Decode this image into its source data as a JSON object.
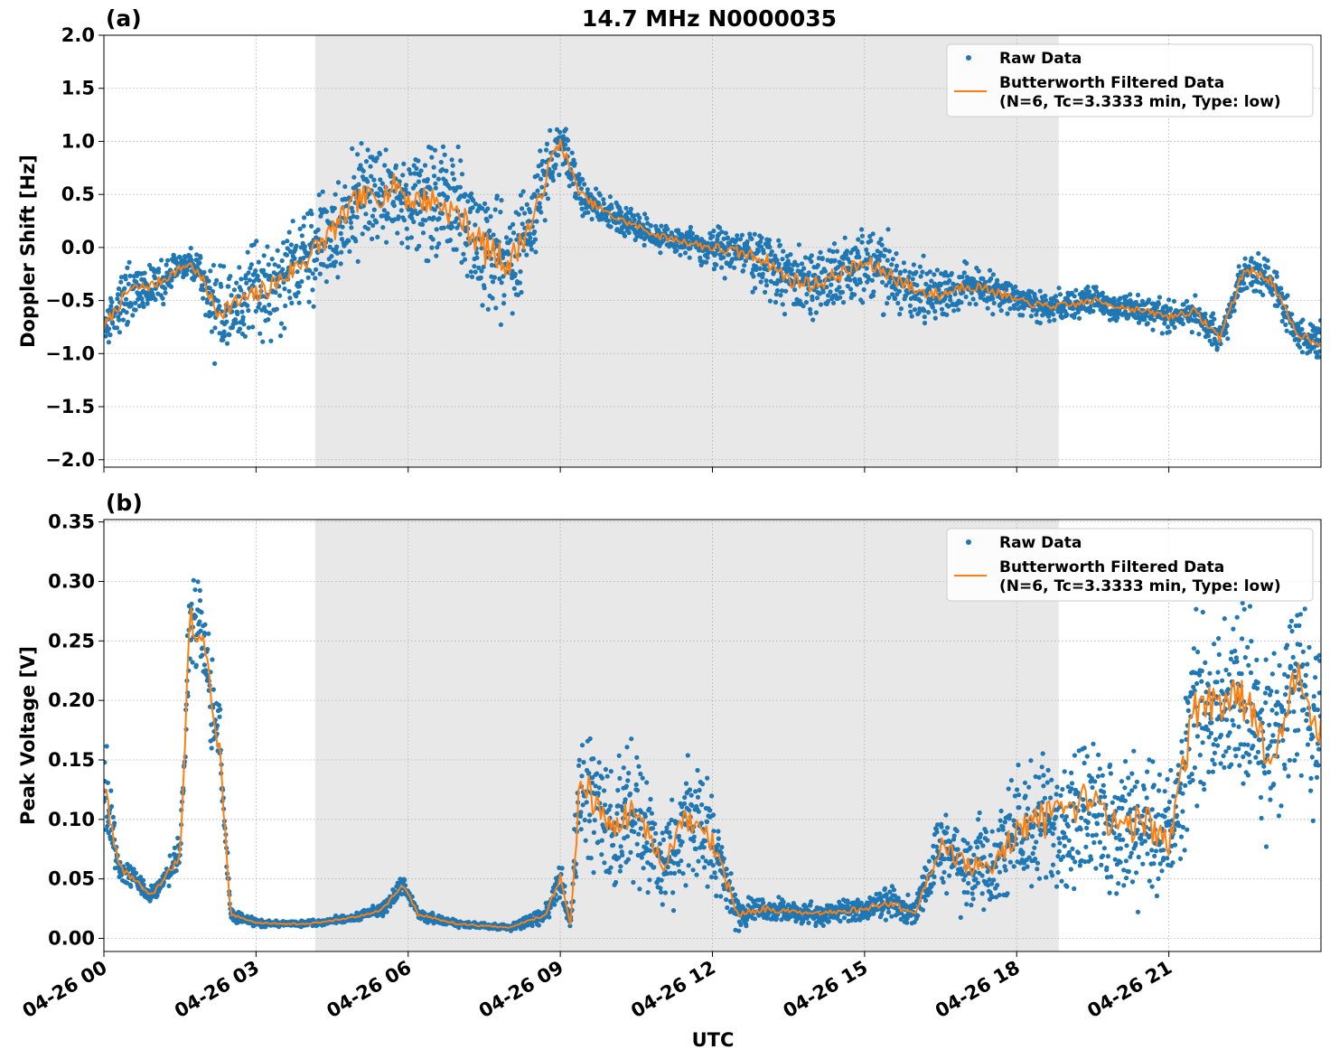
{
  "figure": {
    "title": "14.7 MHz N0000035",
    "x_axis_label": "UTC",
    "x_tick_labels": [
      "04-26 00",
      "04-26 03",
      "04-26 06",
      "04-26 09",
      "04-26 12",
      "04-26 15",
      "04-26 18",
      "04-26 21"
    ]
  },
  "colors": {
    "raw": "#1f77b4",
    "filtered": "#ff7f0e",
    "shade": "#e8e8e8",
    "grid": "#b0b0b0"
  },
  "chart_data": [
    {
      "type": "scatter",
      "panel_label": "(a)",
      "title": "14.7 MHz N0000035",
      "xlabel": "UTC",
      "ylabel": "Doppler Shift [Hz]",
      "xlim": [
        0,
        24
      ],
      "ylim": [
        -2.07,
        2.0
      ],
      "x_unit": "hours UTC on 04-26",
      "x_ticks": [
        0,
        3,
        6,
        9,
        12,
        15,
        18,
        21
      ],
      "y_ticks": [
        -2.0,
        -1.5,
        -1.0,
        -0.5,
        0.0,
        0.5,
        1.0,
        1.5,
        2.0
      ],
      "y_tick_labels": [
        "−2.0",
        "−1.5",
        "−1.0",
        "−0.5",
        "0.0",
        "0.5",
        "1.0",
        "1.5",
        "2.0"
      ],
      "grid": true,
      "legend": "top-right",
      "shaded_interval": [
        4.17,
        18.83
      ],
      "series": [
        {
          "name": "Raw Data",
          "style": "points",
          "x": [
            0.0,
            0.5,
            1.0,
            1.5,
            1.7,
            2.0,
            2.2,
            2.5,
            3.0,
            3.5,
            4.0,
            4.5,
            5.0,
            5.5,
            5.8,
            6.0,
            6.5,
            7.0,
            7.5,
            8.0,
            8.5,
            8.8,
            9.0,
            9.3,
            9.5,
            10.0,
            10.5,
            11.0,
            11.5,
            12.0,
            12.5,
            13.0,
            13.5,
            14.0,
            14.5,
            15.0,
            15.5,
            16.0,
            16.5,
            17.0,
            17.5,
            18.0,
            18.5,
            19.0,
            19.5,
            20.0,
            20.5,
            21.0,
            21.5,
            22.0,
            22.5,
            23.0,
            23.5,
            24.0
          ],
          "y": [
            -0.75,
            -0.4,
            -0.35,
            -0.2,
            -0.15,
            -0.35,
            -0.6,
            -0.55,
            -0.45,
            -0.3,
            -0.1,
            0.15,
            0.45,
            0.5,
            0.6,
            0.45,
            0.45,
            0.3,
            0.0,
            -0.15,
            0.3,
            0.8,
            1.0,
            0.6,
            0.45,
            0.3,
            0.2,
            0.1,
            0.05,
            0.0,
            -0.05,
            -0.1,
            -0.3,
            -0.35,
            -0.25,
            -0.15,
            -0.25,
            -0.4,
            -0.45,
            -0.35,
            -0.4,
            -0.5,
            -0.55,
            -0.55,
            -0.5,
            -0.55,
            -0.6,
            -0.65,
            -0.6,
            -0.85,
            -0.2,
            -0.3,
            -0.8,
            -0.9
          ],
          "spread": [
            0.3,
            0.35,
            0.3,
            0.25,
            0.2,
            0.35,
            0.55,
            0.55,
            0.6,
            0.65,
            0.7,
            0.7,
            0.7,
            0.7,
            0.7,
            0.75,
            0.8,
            0.85,
            0.9,
            0.85,
            0.6,
            0.45,
            0.35,
            0.3,
            0.25,
            0.2,
            0.2,
            0.2,
            0.2,
            0.3,
            0.35,
            0.4,
            0.45,
            0.45,
            0.45,
            0.45,
            0.45,
            0.4,
            0.35,
            0.3,
            0.25,
            0.2,
            0.2,
            0.2,
            0.2,
            0.2,
            0.2,
            0.2,
            0.2,
            0.25,
            0.25,
            0.25,
            0.25,
            0.25
          ]
        },
        {
          "name": "Butterworth Filtered Data\n(N=6, Tc=3.3333 min, Type: low)",
          "style": "line",
          "x": [
            0.0,
            0.5,
            1.0,
            1.5,
            1.7,
            2.0,
            2.2,
            2.5,
            3.0,
            3.5,
            4.0,
            4.5,
            5.0,
            5.5,
            5.8,
            6.0,
            6.5,
            7.0,
            7.5,
            8.0,
            8.5,
            8.8,
            9.0,
            9.3,
            9.5,
            10.0,
            10.5,
            11.0,
            11.5,
            12.0,
            12.5,
            13.0,
            13.5,
            14.0,
            14.5,
            15.0,
            15.5,
            16.0,
            16.5,
            17.0,
            17.5,
            18.0,
            18.5,
            19.0,
            19.5,
            20.0,
            20.5,
            21.0,
            21.5,
            22.0,
            22.5,
            23.0,
            23.5,
            24.0
          ],
          "y": [
            -0.75,
            -0.4,
            -0.35,
            -0.2,
            -0.15,
            -0.35,
            -0.6,
            -0.55,
            -0.45,
            -0.3,
            -0.1,
            0.15,
            0.45,
            0.5,
            0.6,
            0.45,
            0.45,
            0.3,
            0.0,
            -0.15,
            0.3,
            0.8,
            1.0,
            0.6,
            0.45,
            0.3,
            0.2,
            0.1,
            0.05,
            0.0,
            -0.05,
            -0.1,
            -0.3,
            -0.35,
            -0.25,
            -0.15,
            -0.25,
            -0.4,
            -0.45,
            -0.35,
            -0.4,
            -0.5,
            -0.55,
            -0.55,
            -0.5,
            -0.55,
            -0.6,
            -0.65,
            -0.6,
            -0.85,
            -0.2,
            -0.3,
            -0.8,
            -0.9
          ]
        }
      ]
    },
    {
      "type": "scatter",
      "panel_label": "(b)",
      "xlabel": "UTC",
      "ylabel": "Peak Voltage [V]",
      "xlim": [
        0,
        24
      ],
      "ylim": [
        -0.011,
        0.352
      ],
      "x_unit": "hours UTC on 04-26",
      "x_ticks": [
        0,
        3,
        6,
        9,
        12,
        15,
        18,
        21
      ],
      "y_ticks": [
        0.0,
        0.05,
        0.1,
        0.15,
        0.2,
        0.25,
        0.3,
        0.35
      ],
      "y_tick_labels": [
        "0.00",
        "0.05",
        "0.10",
        "0.15",
        "0.20",
        "0.25",
        "0.30",
        "0.35"
      ],
      "grid": true,
      "legend": "top-right",
      "shaded_interval": [
        4.17,
        18.83
      ],
      "series": [
        {
          "name": "Raw Data",
          "style": "points",
          "x": [
            0.0,
            0.3,
            0.6,
            0.9,
            1.2,
            1.5,
            1.7,
            2.0,
            2.3,
            2.5,
            3.0,
            4.0,
            5.0,
            5.5,
            5.9,
            6.2,
            7.0,
            8.0,
            8.7,
            9.0,
            9.2,
            9.4,
            9.6,
            10.0,
            10.5,
            11.0,
            11.5,
            12.0,
            12.5,
            13.0,
            14.0,
            15.0,
            15.5,
            16.0,
            16.5,
            17.0,
            17.5,
            18.0,
            18.5,
            19.0,
            19.5,
            20.0,
            20.5,
            21.0,
            21.5,
            22.0,
            22.5,
            23.0,
            23.5,
            24.0
          ],
          "y": [
            0.13,
            0.06,
            0.05,
            0.035,
            0.05,
            0.07,
            0.27,
            0.24,
            0.15,
            0.02,
            0.013,
            0.012,
            0.018,
            0.025,
            0.045,
            0.02,
            0.012,
            0.009,
            0.02,
            0.05,
            0.012,
            0.14,
            0.12,
            0.09,
            0.11,
            0.06,
            0.1,
            0.08,
            0.02,
            0.025,
            0.02,
            0.025,
            0.03,
            0.02,
            0.08,
            0.06,
            0.06,
            0.09,
            0.1,
            0.1,
            0.12,
            0.09,
            0.1,
            0.08,
            0.19,
            0.2,
            0.2,
            0.15,
            0.22,
            0.17
          ],
          "spread": [
            0.06,
            0.02,
            0.015,
            0.01,
            0.015,
            0.03,
            0.06,
            0.06,
            0.05,
            0.008,
            0.004,
            0.004,
            0.005,
            0.008,
            0.012,
            0.006,
            0.004,
            0.003,
            0.01,
            0.02,
            0.006,
            0.09,
            0.08,
            0.07,
            0.08,
            0.05,
            0.07,
            0.06,
            0.015,
            0.015,
            0.012,
            0.015,
            0.02,
            0.015,
            0.05,
            0.05,
            0.05,
            0.07,
            0.09,
            0.09,
            0.1,
            0.08,
            0.09,
            0.07,
            0.1,
            0.1,
            0.1,
            0.1,
            0.1,
            0.1
          ]
        },
        {
          "name": "Butterworth Filtered Data\n(N=6, Tc=3.3333 min, Type: low)",
          "style": "line",
          "x": [
            0.0,
            0.3,
            0.6,
            0.9,
            1.2,
            1.5,
            1.7,
            2.0,
            2.3,
            2.5,
            3.0,
            4.0,
            5.0,
            5.5,
            5.9,
            6.2,
            7.0,
            8.0,
            8.7,
            9.0,
            9.2,
            9.4,
            9.6,
            10.0,
            10.5,
            11.0,
            11.5,
            12.0,
            12.5,
            13.0,
            14.0,
            15.0,
            15.5,
            16.0,
            16.5,
            17.0,
            17.5,
            18.0,
            18.5,
            19.0,
            19.5,
            20.0,
            20.5,
            21.0,
            21.5,
            22.0,
            22.5,
            23.0,
            23.5,
            24.0
          ],
          "y": [
            0.13,
            0.06,
            0.05,
            0.035,
            0.05,
            0.07,
            0.27,
            0.24,
            0.15,
            0.02,
            0.013,
            0.012,
            0.018,
            0.025,
            0.045,
            0.02,
            0.012,
            0.009,
            0.02,
            0.05,
            0.012,
            0.14,
            0.12,
            0.09,
            0.11,
            0.06,
            0.1,
            0.08,
            0.02,
            0.025,
            0.02,
            0.025,
            0.03,
            0.02,
            0.08,
            0.06,
            0.06,
            0.09,
            0.1,
            0.1,
            0.12,
            0.09,
            0.1,
            0.08,
            0.19,
            0.2,
            0.2,
            0.15,
            0.22,
            0.17
          ]
        }
      ]
    }
  ]
}
